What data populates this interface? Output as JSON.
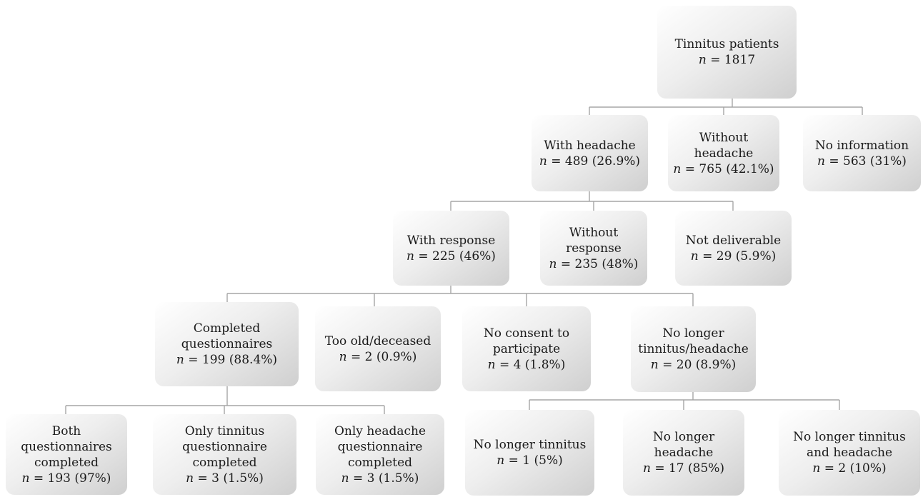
{
  "flowchart": {
    "nodes": [
      {
        "id": "total",
        "label": "Tinnitus patients",
        "count": "= 1817"
      },
      {
        "id": "with_headache",
        "label": "With headache",
        "count": "= 489 (26.9%)"
      },
      {
        "id": "without_headache",
        "label": "Without\nheadache",
        "count": "= 765 (42.1%)"
      },
      {
        "id": "no_information",
        "label": "No information",
        "count": "= 563 (31%)"
      },
      {
        "id": "with_response",
        "label": "With response",
        "count": "= 225 (46%)"
      },
      {
        "id": "without_response",
        "label": "Without\nresponse",
        "count": "= 235 (48%)"
      },
      {
        "id": "not_deliverable",
        "label": "Not deliverable",
        "count": "= 29 (5.9%)"
      },
      {
        "id": "completed_questionnaires",
        "label": "Completed\nquestionnaires",
        "count": "= 199 (88.4%)"
      },
      {
        "id": "too_old_deceased",
        "label": "Too old/deceased",
        "count": "= 2 (0.9%)"
      },
      {
        "id": "no_consent",
        "label": "No consent to\nparticipate",
        "count": "= 4 (1.8%)"
      },
      {
        "id": "no_longer_tinnitus_headache",
        "label": "No longer\ntinnitus/headache",
        "count": "= 20 (8.9%)"
      },
      {
        "id": "both_completed",
        "label": "Both\nquestionnaires\ncompleted",
        "count": "= 193 (97%)"
      },
      {
        "id": "only_tinnitus_completed",
        "label": "Only tinnitus\nquestionnaire\ncompleted",
        "count": "= 3 (1.5%)"
      },
      {
        "id": "only_headache_completed",
        "label": "Only headache\nquestionnaire\ncompleted",
        "count": "= 3 (1.5%)"
      },
      {
        "id": "no_longer_tinnitus",
        "label": "No longer tinnitus",
        "count": "= 1 (5%)"
      },
      {
        "id": "no_longer_headache",
        "label": "No longer headache",
        "count": "= 17 (85%)"
      },
      {
        "id": "no_longer_both",
        "label": "No longer tinnitus\nand headache",
        "count": "= 2 (10%)"
      }
    ],
    "n_symbol": "n"
  }
}
